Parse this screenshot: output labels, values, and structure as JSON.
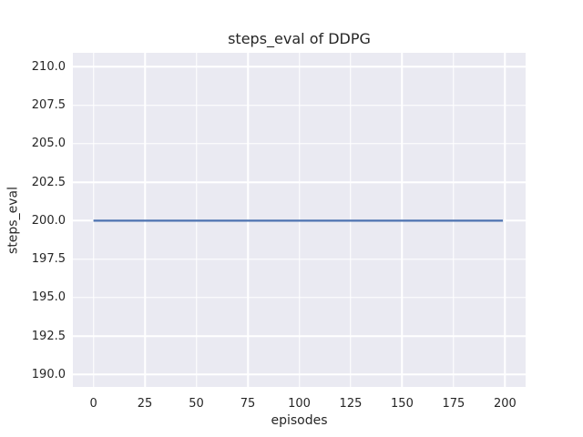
{
  "figure": {
    "background": "#ffffff",
    "plot_background": "#eaeaf2",
    "grid_color": "#ffffff",
    "text_color": "#262626"
  },
  "chart_data": {
    "type": "line",
    "title": "steps_eval of DDPG",
    "xlabel": "episodes",
    "ylabel": "steps_eval",
    "xlim": [
      -10,
      210
    ],
    "ylim": [
      189.2,
      210.9
    ],
    "grid": true,
    "legend": false,
    "x_ticks": [
      {
        "value": 0,
        "label": "0"
      },
      {
        "value": 25,
        "label": "25"
      },
      {
        "value": 50,
        "label": "50"
      },
      {
        "value": 75,
        "label": "75"
      },
      {
        "value": 100,
        "label": "100"
      },
      {
        "value": 125,
        "label": "125"
      },
      {
        "value": 150,
        "label": "150"
      },
      {
        "value": 175,
        "label": "175"
      },
      {
        "value": 200,
        "label": "200"
      }
    ],
    "y_ticks": [
      {
        "value": 190.0,
        "label": "190.0"
      },
      {
        "value": 192.5,
        "label": "192.5"
      },
      {
        "value": 195.0,
        "label": "195.0"
      },
      {
        "value": 197.5,
        "label": "197.5"
      },
      {
        "value": 200.0,
        "label": "200.0"
      },
      {
        "value": 202.5,
        "label": "202.5"
      },
      {
        "value": 205.0,
        "label": "205.0"
      },
      {
        "value": 207.5,
        "label": "207.5"
      },
      {
        "value": 210.0,
        "label": "210.0"
      }
    ],
    "series": [
      {
        "name": "DDPG",
        "color": "#4c72b0",
        "line_width": 2.2,
        "x": [
          0,
          199
        ],
        "y": [
          200,
          200
        ],
        "note": "constant steps_eval of 200 for every evaluated episode 0-199"
      }
    ]
  }
}
